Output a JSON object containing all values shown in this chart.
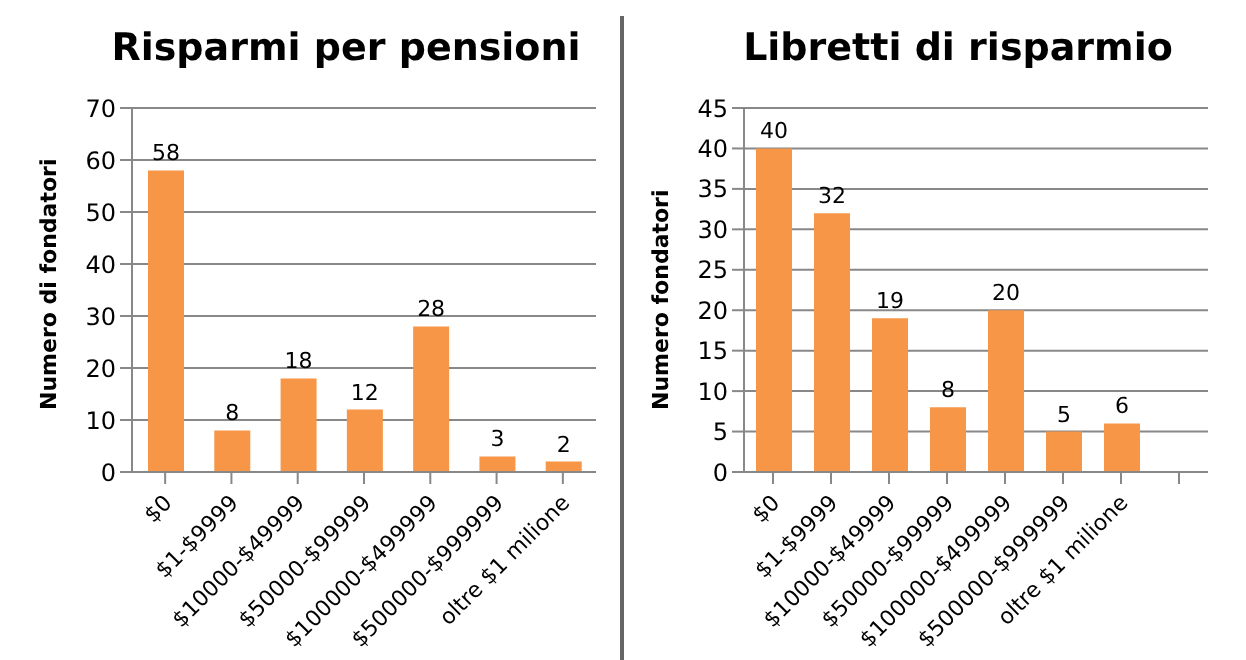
{
  "chart_data": [
    {
      "type": "bar",
      "title": "Risparmi per pensioni",
      "ylabel": "Numero di fondatori",
      "categories": [
        "$0",
        "$1-$9999",
        "$10000-$49999",
        "$50000-$99999",
        "$100000-$499999",
        "$500000-$999999",
        "oltre $1 milione"
      ],
      "values": [
        58,
        8,
        18,
        12,
        28,
        3,
        2
      ],
      "color": "#f79646",
      "ylim": [
        0,
        70
      ],
      "yticks": [
        0,
        10,
        20,
        30,
        40,
        50,
        60,
        70
      ],
      "grid": "y",
      "data_labels": true,
      "legend": false
    },
    {
      "type": "bar",
      "title": "Libretti di risparmio",
      "ylabel": "Numero fondatori",
      "categories": [
        "$0",
        "$1-$9999",
        "$10000-$49999",
        "$50000-$99999",
        "$100000-$499999",
        "$500000-$999999",
        "oltre $1 milione",
        null
      ],
      "values": [
        40,
        32,
        19,
        8,
        20,
        5,
        6,
        null
      ],
      "color": "#f79646",
      "ylim": [
        0,
        45
      ],
      "yticks": [
        0,
        5,
        10,
        15,
        20,
        25,
        30,
        35,
        40,
        45
      ],
      "grid": "y",
      "data_labels": true,
      "legend": false
    }
  ]
}
